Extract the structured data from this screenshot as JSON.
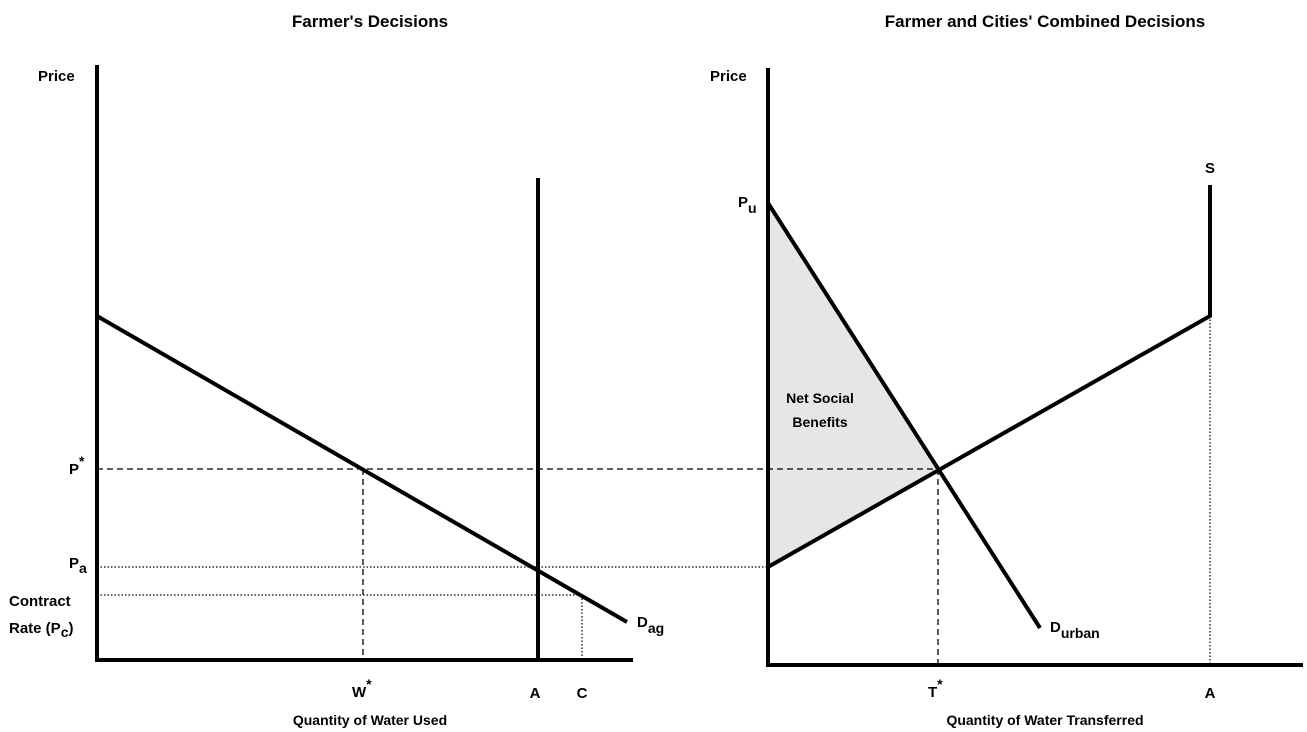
{
  "left_panel": {
    "title": "Farmer's Decisions",
    "y_axis_label": "Price",
    "x_axis_label": "Quantity of Water Used",
    "p_star": {
      "base": "P",
      "sup": "*"
    },
    "p_a": {
      "base": "P",
      "sub": "a"
    },
    "contract_rate": {
      "line1": "Contract",
      "line2": "Rate (P",
      "sub": "c",
      "end": ")"
    },
    "demand": {
      "base": "D",
      "sub": "ag"
    },
    "w_star": {
      "base": "W",
      "sup": "*"
    },
    "a": "A",
    "c": "C"
  },
  "right_panel": {
    "title": "Farmer and Cities' Combined Decisions",
    "y_axis_label": "Price",
    "x_axis_label": "Quantity of Water Transferred",
    "p_u": {
      "base": "P",
      "sub": "u"
    },
    "supply": "S",
    "area_label": {
      "line1": "Net Social",
      "line2": "Benefits"
    },
    "demand": {
      "base": "D",
      "sub": "urban"
    },
    "t_star": {
      "base": "T",
      "sup": "*"
    },
    "a": "A"
  }
}
